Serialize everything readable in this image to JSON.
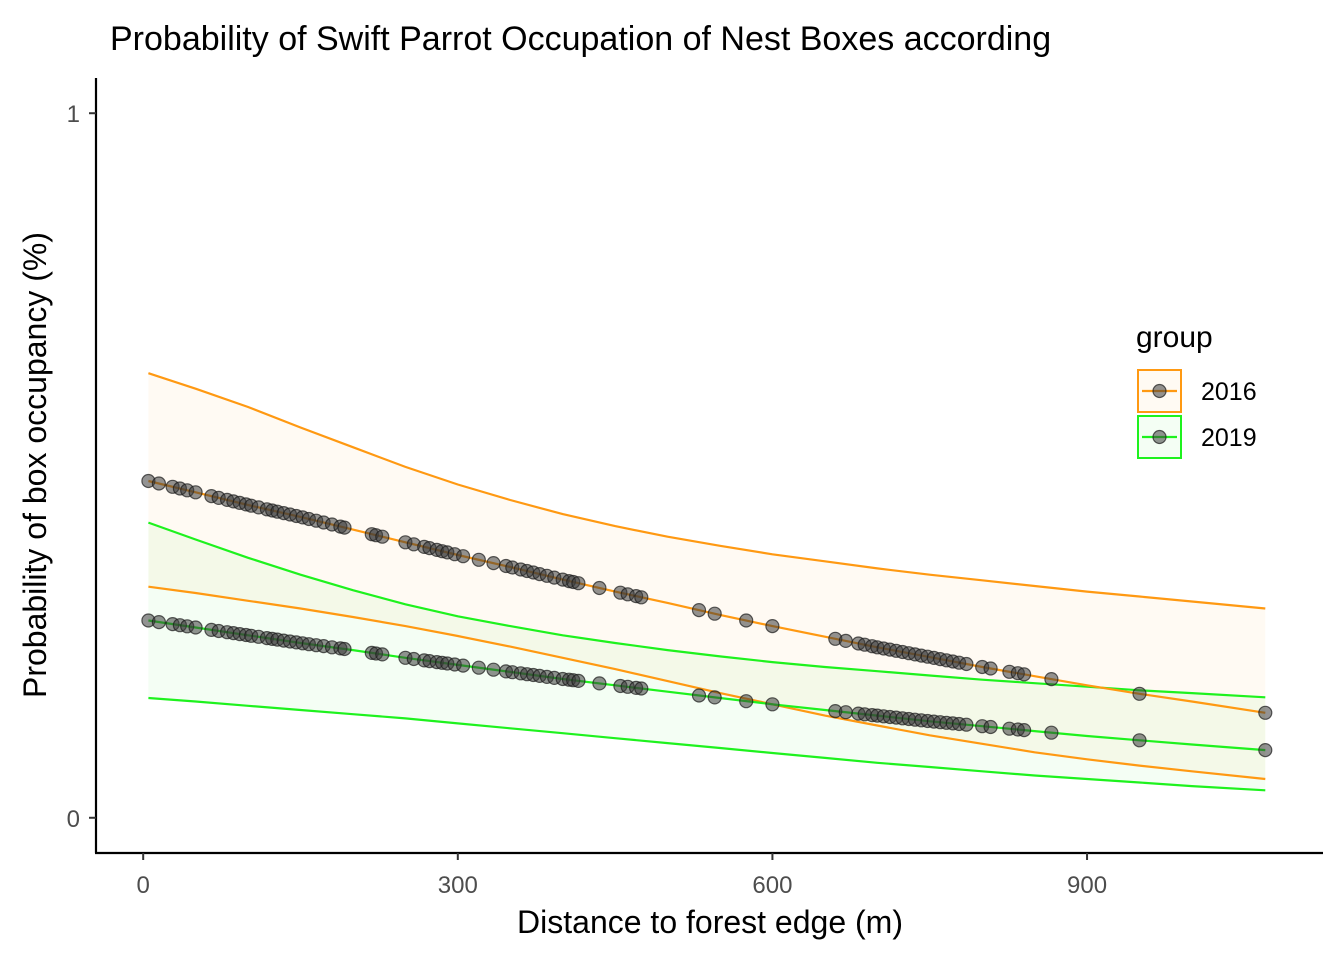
{
  "chart_data": {
    "type": "line",
    "title": "Probability of Swift Parrot Occupation of Nest Boxes according",
    "xlabel": "Distance to forest edge (m)",
    "ylabel": "Probability of box occupancy (%)",
    "xlim": [
      -45,
      1125
    ],
    "ylim": [
      -0.05,
      1.05
    ],
    "x_ticks": [
      0,
      300,
      600,
      900
    ],
    "y_ticks": [
      0,
      1
    ],
    "grid": false,
    "legend": {
      "title": "group",
      "position": "right"
    },
    "series": [
      {
        "name": "2016",
        "color": "#FF9912",
        "fill": "#FFF8F0",
        "curve_x": [
          5,
          50,
          100,
          150,
          200,
          250,
          300,
          350,
          400,
          450,
          500,
          550,
          600,
          650,
          700,
          750,
          800,
          850,
          900,
          950,
          1000,
          1070
        ],
        "fit": [
          0.478,
          0.462,
          0.444,
          0.427,
          0.409,
          0.391,
          0.373,
          0.356,
          0.338,
          0.321,
          0.305,
          0.288,
          0.272,
          0.257,
          0.242,
          0.228,
          0.214,
          0.201,
          0.188,
          0.176,
          0.165,
          0.149
        ],
        "upper": [
          0.631,
          0.609,
          0.583,
          0.554,
          0.526,
          0.498,
          0.473,
          0.451,
          0.431,
          0.414,
          0.399,
          0.386,
          0.374,
          0.364,
          0.354,
          0.345,
          0.337,
          0.329,
          0.321,
          0.314,
          0.307,
          0.297
        ],
        "lower": [
          0.328,
          0.319,
          0.308,
          0.297,
          0.285,
          0.272,
          0.258,
          0.243,
          0.227,
          0.211,
          0.194,
          0.177,
          0.161,
          0.145,
          0.131,
          0.117,
          0.105,
          0.093,
          0.083,
          0.074,
          0.066,
          0.055
        ]
      },
      {
        "name": "2019",
        "color": "#1EF21E",
        "fill": "#F2FCF2",
        "curve_x": [
          5,
          50,
          100,
          150,
          200,
          250,
          300,
          350,
          400,
          450,
          500,
          550,
          600,
          650,
          700,
          750,
          800,
          850,
          900,
          950,
          1000,
          1070
        ],
        "fit": [
          0.28,
          0.27,
          0.259,
          0.248,
          0.238,
          0.227,
          0.217,
          0.207,
          0.197,
          0.188,
          0.179,
          0.17,
          0.161,
          0.153,
          0.145,
          0.137,
          0.13,
          0.123,
          0.116,
          0.11,
          0.104,
          0.096
        ],
        "upper": [
          0.419,
          0.395,
          0.369,
          0.345,
          0.323,
          0.303,
          0.286,
          0.272,
          0.259,
          0.248,
          0.238,
          0.229,
          0.221,
          0.214,
          0.208,
          0.202,
          0.196,
          0.191,
          0.186,
          0.181,
          0.177,
          0.171
        ],
        "lower": [
          0.17,
          0.165,
          0.159,
          0.153,
          0.147,
          0.141,
          0.134,
          0.127,
          0.12,
          0.113,
          0.106,
          0.099,
          0.092,
          0.085,
          0.078,
          0.072,
          0.066,
          0.06,
          0.055,
          0.05,
          0.045,
          0.039
        ]
      }
    ],
    "points_x": [
      5,
      15,
      28,
      35,
      42,
      50,
      65,
      72,
      80,
      86,
      92,
      98,
      103,
      110,
      118,
      123,
      128,
      134,
      140,
      146,
      152,
      158,
      165,
      172,
      180,
      188,
      192,
      218,
      222,
      228,
      250,
      258,
      268,
      273,
      280,
      285,
      290,
      297,
      305,
      320,
      334,
      346,
      352,
      360,
      366,
      372,
      378,
      385,
      392,
      400,
      406,
      410,
      415,
      435,
      455,
      462,
      470,
      475,
      530,
      545,
      575,
      600,
      660,
      670,
      682,
      688,
      695,
      700,
      706,
      712,
      718,
      724,
      730,
      736,
      742,
      748,
      754,
      760,
      766,
      772,
      778,
      785,
      800,
      808,
      826,
      834,
      840,
      866,
      950,
      1070
    ]
  }
}
